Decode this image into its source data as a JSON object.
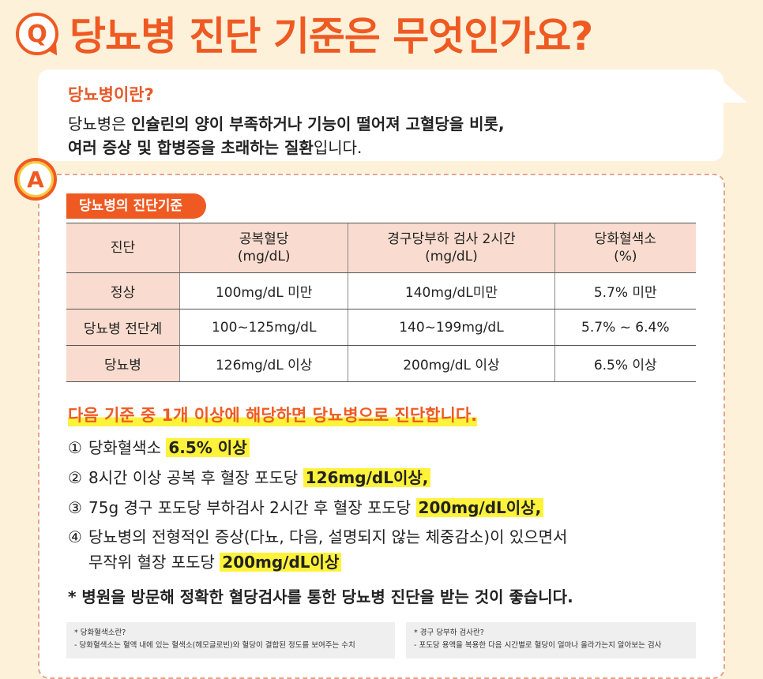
{
  "header": {
    "q_letter": "Q",
    "title": "당뇨병 진단 기준은 무엇인가요?"
  },
  "definition": {
    "title": "당뇨병이란?",
    "line1_a": "당뇨병은 ",
    "line1_b": "인슐린의 양이 부족하거나 기능이 떨어져 고혈당을 비롯,",
    "line2_a": "여러 증상 및 합병증을 초래하는 질환",
    "line2_b": "입니다."
  },
  "answer": {
    "a_letter": "A",
    "section_tag": "당뇨병의 진단기준"
  },
  "table": {
    "headers": [
      {
        "line1": "진단",
        "line2": ""
      },
      {
        "line1": "공복혈당",
        "line2": "(mg/dL)"
      },
      {
        "line1": "경구당부하 검사 2시간",
        "line2": "(mg/dL)"
      },
      {
        "line1": "당화혈색소",
        "line2": "(%)"
      }
    ],
    "rows": [
      [
        "정상",
        "100mg/dL 미만",
        "140mg/dL미만",
        "5.7% 미만"
      ],
      [
        "당뇨병 전단계",
        "100~125mg/dL",
        "140~199mg/dL",
        "5.7% ~ 6.4%"
      ],
      [
        "당뇨병",
        "126mg/dL 이상",
        "200mg/dL 이상",
        "6.5% 이상"
      ]
    ]
  },
  "criteria": {
    "title": "다음 기준 중 1개 이상에 해당하면 당뇨병으로 진단합니다.",
    "items": [
      {
        "num": "①",
        "text": "당화혈색소 ",
        "highlight": "6.5% 이상"
      },
      {
        "num": "②",
        "text": "8시간 이상 공복 후 혈장 포도당 ",
        "highlight": "126mg/dL이상,"
      },
      {
        "num": "③",
        "text": "75g 경구 포도당 부하검사 2시간 후 혈장 포도당 ",
        "highlight": "200mg/dL이상,"
      },
      {
        "num": "④",
        "text": "당뇨병의 전형적인 증상(다뇨, 다음, 설명되지 않는 체중감소)이 있으면서",
        "text2": "무작위 혈장 포도당 ",
        "highlight": "200mg/dL이상"
      }
    ],
    "note": "* 병원을 방문해 정확한 혈당검사를 통한 당뇨병 진단을 받는 것이 좋습니다."
  },
  "footnotes": {
    "left_q": "* 당화혈색소란?",
    "left_a": "- 당화혈색소는 혈액 내에 있는 혈색소(헤모글로빈)와 혈당이 결합된 정도를 보여주는 수치",
    "right_q": "* 경구 당부하 검사란?",
    "right_a": "- 포도당 용액을 복용한 다음 시간별로 혈당이 얼마나 올라가는지 알아보는 검사"
  },
  "colors": {
    "accent": "#ef5a22",
    "background": "#fdf1da",
    "table_header": "#f9dccf",
    "highlight": "#fff23a"
  }
}
